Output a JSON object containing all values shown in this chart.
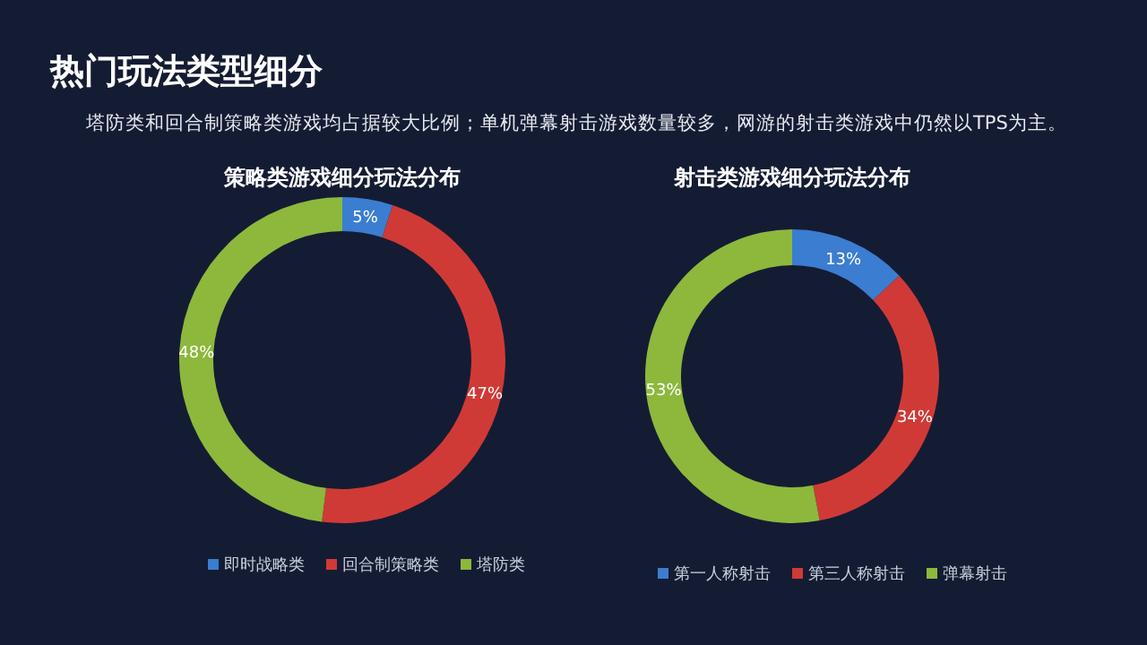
{
  "chart_data": [
    {
      "type": "donut",
      "title": "策略类游戏细分玩法分布",
      "categories": [
        "即时战略类",
        "回合制策略类",
        "塔防类"
      ],
      "values": [
        5,
        47,
        48
      ],
      "value_labels": [
        "5%",
        "47%",
        "48%"
      ],
      "colors": [
        "#3b7dd0",
        "#d03a36",
        "#8db83c"
      ],
      "legend": "bottom",
      "annotations": [
        "热门玩法类型细分",
        "塔防类和回合制策略类游戏均占据较大比例；单机弹幕射击游戏数量较多，网游的射击类游戏中仍然以TPS为主。"
      ]
    },
    {
      "type": "donut",
      "title": "射击类游戏细分玩法分布",
      "categories": [
        "第一人称射击",
        "第三人称射击",
        "弹幕射击"
      ],
      "values": [
        13,
        34,
        53
      ],
      "value_labels": [
        "13%",
        "34%",
        "53%"
      ],
      "colors": [
        "#3b7dd0",
        "#d03a36",
        "#8db83c"
      ],
      "legend": "bottom"
    }
  ]
}
